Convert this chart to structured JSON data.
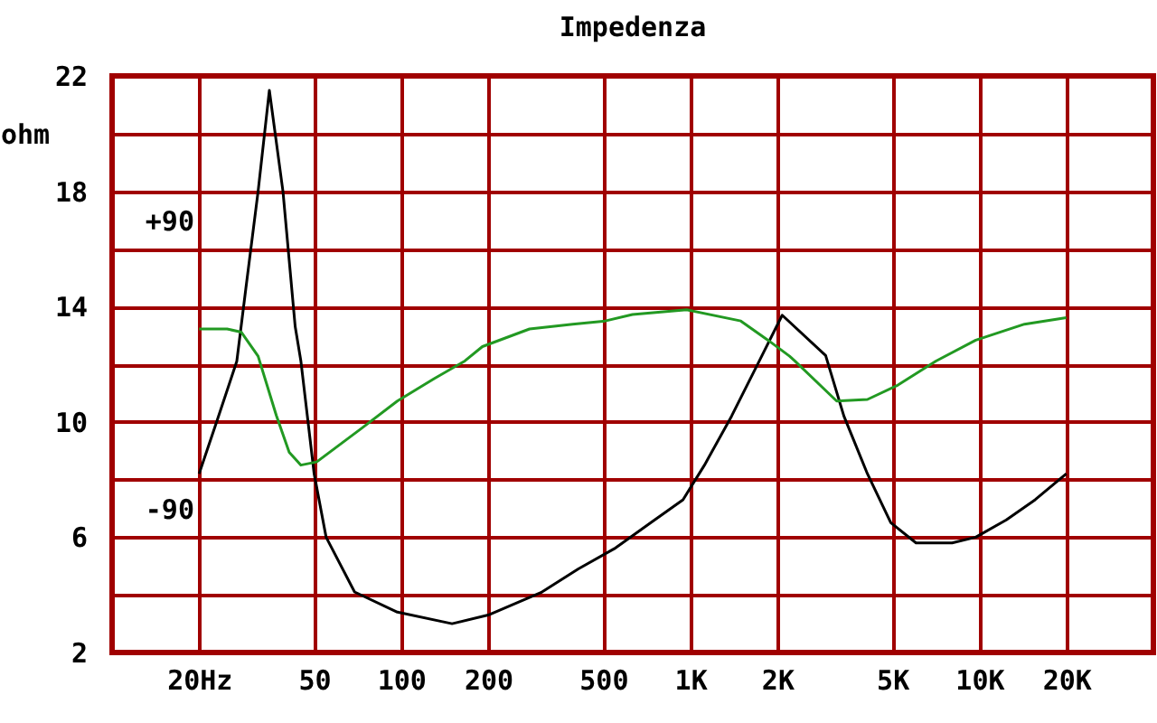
{
  "chart_data": {
    "type": "line",
    "title": "Impedenza",
    "ylabel": "ohm",
    "log": "x",
    "grid": true,
    "xlim": [
      10,
      40000
    ],
    "xticks": [
      {
        "value": 20,
        "label": "20Hz"
      },
      50,
      100,
      200,
      500,
      {
        "value": 1000,
        "label": "1K"
      },
      {
        "value": 2000,
        "label": "2K"
      },
      {
        "value": 5000,
        "label": "5K"
      },
      {
        "value": 10000,
        "label": "10K"
      },
      {
        "value": 20000,
        "label": "20K"
      }
    ],
    "ylim": [
      2,
      22
    ],
    "yticks": [
      2,
      {
        "value": 4,
        "label": null
      },
      6,
      {
        "value": 8,
        "label": null
      },
      10,
      {
        "value": 12,
        "label": null
      },
      14,
      {
        "value": 16,
        "label": null
      },
      18,
      {
        "value": 20,
        "label": null
      },
      22
    ],
    "y2lim": [
      -180,
      180
    ],
    "y2ticks": [
      {
        "value": 90,
        "label": "+90"
      },
      {
        "value": -90,
        "label": "-90"
      }
    ],
    "series": [
      {
        "color": "#000000",
        "x": [
          20,
          23,
          27,
          29,
          32,
          35,
          39,
          43,
          45,
          50,
          55,
          69,
          97,
          150,
          200,
          307,
          410,
          546,
          729,
          944,
          1120,
          1390,
          1730,
          2080,
          2940,
          3400,
          4100,
          4940,
          6040,
          8050,
          9720,
          12400,
          15600,
          20000
        ],
        "values": [
          8.2,
          10.0,
          12.1,
          14.6,
          18.0,
          21.5,
          18.0,
          13.3,
          12.1,
          8.2,
          6.0,
          4.1,
          3.4,
          3.0,
          3.3,
          4.1,
          4.9,
          5.6,
          6.5,
          7.3,
          8.5,
          10.2,
          12.1,
          13.7,
          12.3,
          10.2,
          8.2,
          6.5,
          5.8,
          5.8,
          6.0,
          6.6,
          7.3,
          8.2
        ]
      },
      {
        "color": "#229922",
        "axis": "y2",
        "x": [
          20,
          25,
          28,
          32,
          37,
          41,
          45,
          51,
          73,
          97,
          130,
          166,
          191,
          278,
          392,
          508,
          631,
          972,
          1496,
          1858,
          2206,
          2300,
          3210,
          4100,
          5230,
          7080,
          9720,
          14330,
          20000
        ],
        "values": [
          22,
          22,
          20,
          5,
          -32,
          -55,
          -63,
          -61,
          -40,
          -23,
          -9,
          2,
          11,
          22,
          25,
          27,
          31,
          34,
          27,
          15,
          5,
          2,
          -23,
          -22,
          -13,
          2,
          15,
          25,
          29
        ]
      }
    ]
  }
}
